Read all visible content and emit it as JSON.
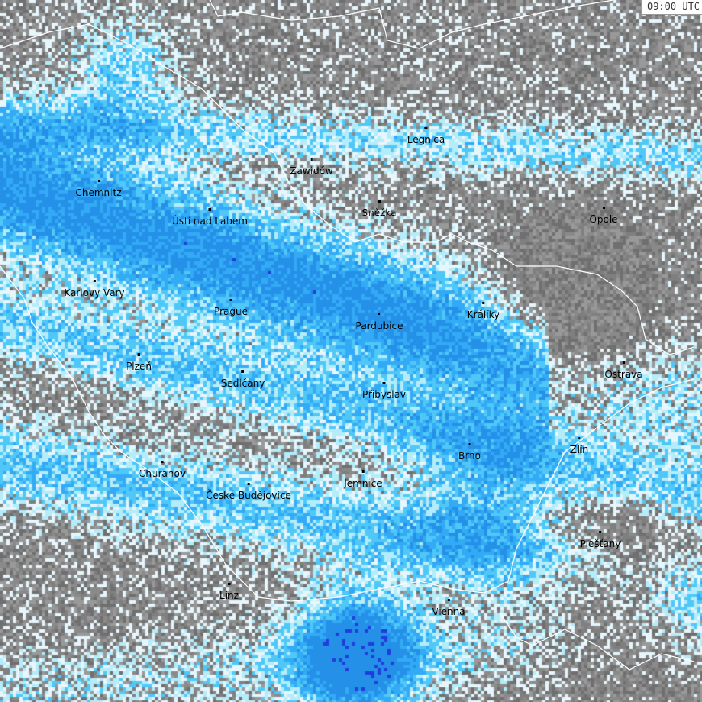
{
  "timestamp": "09:00 UTC",
  "colors": {
    "background_gray": "#808080",
    "light_precip": "#e6f6fc",
    "cyan": "#b4ecfa",
    "light_blue": "#4fc8f8",
    "blue": "#33aaf5",
    "deep_blue": "#2590e8",
    "heavy": "#1f3cdc",
    "borders": "#ffffff"
  },
  "cities": [
    {
      "name": "Legnica"
    },
    {
      "name": "Zawidów"
    },
    {
      "name": "Chemnitz"
    },
    {
      "name": "Ústí nad Labem"
    },
    {
      "name": "Sněžka"
    },
    {
      "name": "Opole"
    },
    {
      "name": "Karlovy Vary"
    },
    {
      "name": "Prague"
    },
    {
      "name": "Pardubice"
    },
    {
      "name": "Králíky"
    },
    {
      "name": "Plzeň"
    },
    {
      "name": "Sedlčany"
    },
    {
      "name": "Přibyslav"
    },
    {
      "name": "Ostrava"
    },
    {
      "name": "Zlín"
    },
    {
      "name": "Brno"
    },
    {
      "name": "Churanov"
    },
    {
      "name": "České Budějovice"
    },
    {
      "name": "Jemnice"
    },
    {
      "name": "Piešťany"
    },
    {
      "name": "Linz"
    },
    {
      "name": "Vienna"
    }
  ]
}
